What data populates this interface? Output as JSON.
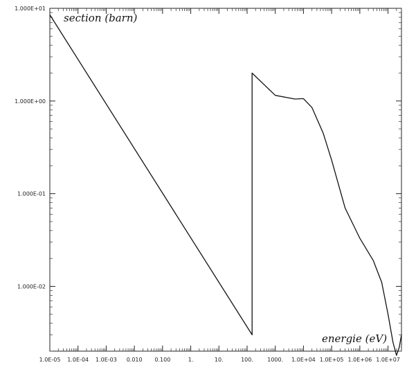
{
  "chart_data": {
    "type": "line",
    "title": "",
    "xlabel": "energie  (eV)",
    "ylabel": "section  (barn)",
    "x_scale": "log",
    "y_scale": "log",
    "xlim": [
      1e-05,
      30000000.0
    ],
    "ylim": [
      0.002,
      10
    ],
    "grid": false,
    "legend": "none",
    "x_tick_values": [
      1e-05,
      0.0001,
      0.001,
      0.01,
      0.1,
      1,
      10,
      100,
      1000,
      10000.0,
      100000.0,
      1000000.0,
      10000000.0
    ],
    "x_tick_labels": [
      "1.0E-05",
      "1.0E-04",
      "1.0E-03",
      "0.010",
      "0.100",
      "1.",
      "10.",
      "100.",
      "1000.",
      "1.0E+04",
      "1.0E+05",
      "1.0E+06",
      "1.0E+07"
    ],
    "y_tick_values": [
      10,
      1,
      0.1,
      0.01
    ],
    "y_tick_labels": [
      "1.000E+01",
      "1.000E+00",
      "1.000E-01",
      "1.000E-02"
    ],
    "series": [
      {
        "x": [
          1e-05,
          150,
          150,
          1000,
          5000,
          10000,
          20000,
          50000,
          100000,
          300000,
          1000000,
          3000000,
          6000000,
          10000000,
          15000000,
          20000000,
          25000000,
          30000000
        ],
        "y": [
          8.5,
          0.003,
          2.0,
          1.15,
          1.05,
          1.06,
          0.85,
          0.45,
          0.23,
          0.07,
          0.033,
          0.019,
          0.011,
          0.005,
          0.0025,
          0.0018,
          0.0022,
          0.003
        ]
      }
    ],
    "line_color": "#111111"
  }
}
